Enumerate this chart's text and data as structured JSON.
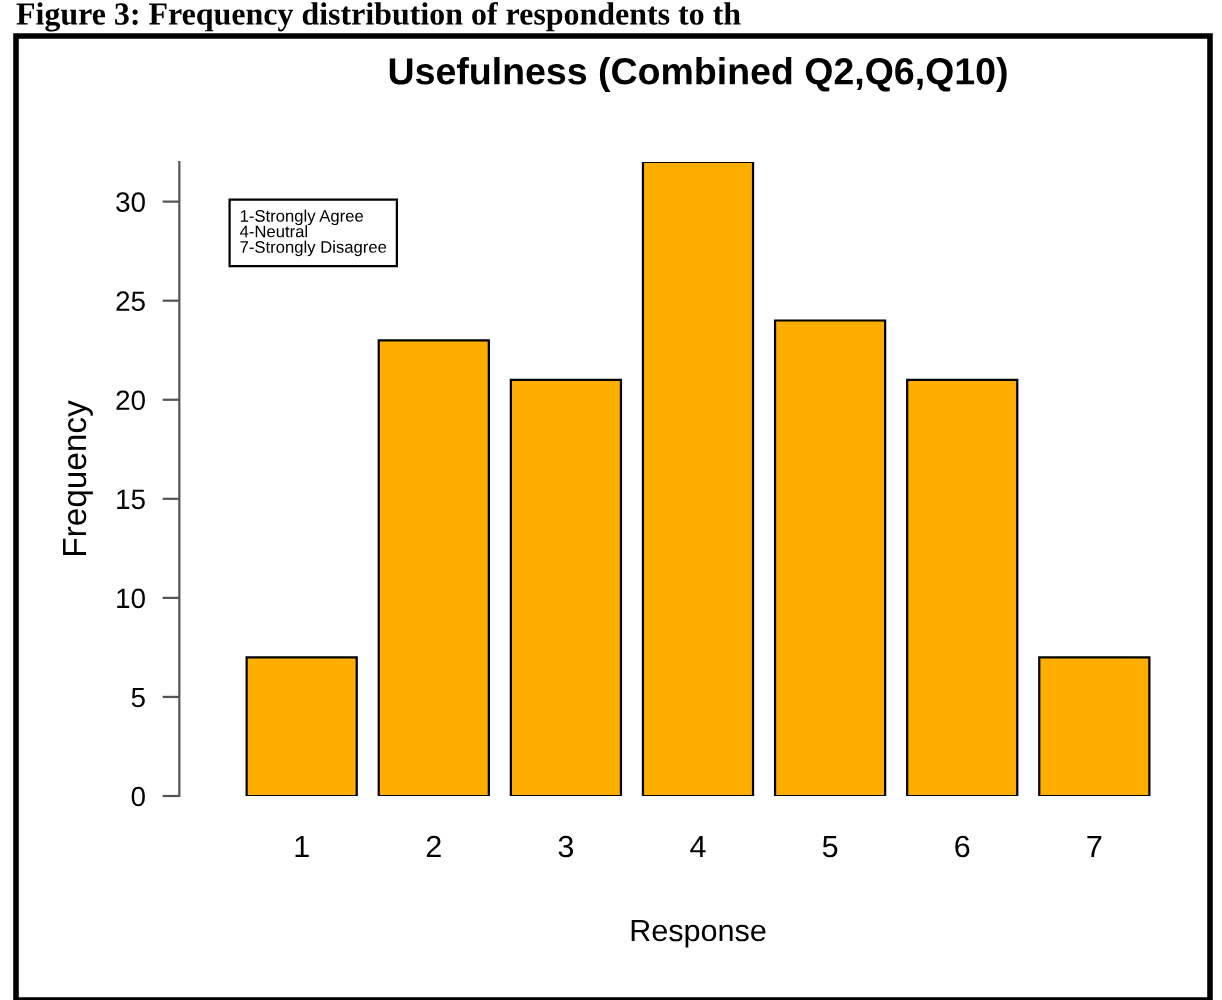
{
  "chart_data": {
    "type": "bar",
    "title": "Usefulness (Combined Q2,Q6,Q10)",
    "xlabel": "Response",
    "ylabel": "Frequency",
    "categories": [
      "1",
      "2",
      "3",
      "4",
      "5",
      "6",
      "7"
    ],
    "values": [
      7,
      23,
      21,
      32,
      24,
      21,
      7
    ],
    "color": "#ffae00",
    "ylim": [
      0,
      32
    ],
    "yticks": [
      0,
      5,
      10,
      15,
      20,
      25,
      30
    ],
    "grid": false,
    "annotations": [
      "Figure 3: Frequency distribution of respondents to th",
      "1-Strongly Agree\n4-Neutral\n7-Strongly Disagree"
    ]
  }
}
